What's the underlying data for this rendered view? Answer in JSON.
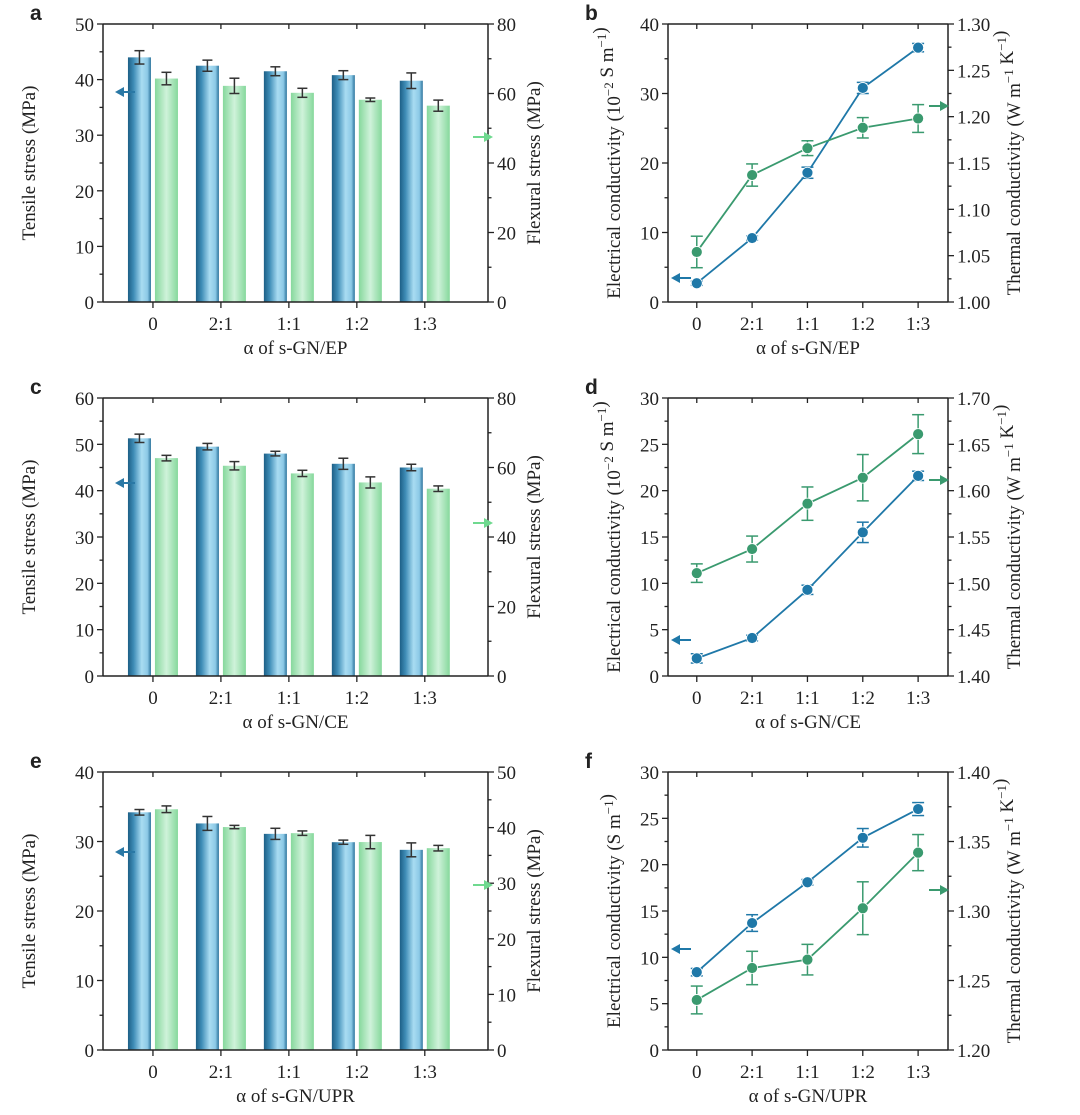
{
  "colors": {
    "blue_line": "#1f78a8",
    "green_line": "#3a9a6f",
    "blue_dark": "#1d5f86",
    "blue_light": "#a9dcf2",
    "green_dark": "#86d89c",
    "green_light": "#cff2da",
    "axis": "#222222",
    "err": "#333333"
  },
  "chart_data": [
    {
      "panel": "a",
      "type": "bar",
      "categories": [
        "0",
        "2:1",
        "1:1",
        "1:2",
        "1:3"
      ],
      "xlabel": "α of s-GN/EP",
      "y1label": [
        {
          "t": "Tensile stress (MPa)"
        }
      ],
      "y2label": [
        {
          "t": "Flexural stress (MPa)"
        }
      ],
      "y1lim": [
        0,
        50
      ],
      "y1ticks": [
        "0",
        "10",
        "20",
        "30",
        "40",
        "50"
      ],
      "y2lim": [
        0,
        80
      ],
      "y2ticks": [
        "0",
        "20",
        "40",
        "60",
        "80"
      ],
      "series": [
        {
          "name": "Tensile stress",
          "axis": "left",
          "values": [
            44.0,
            42.5,
            41.5,
            40.8,
            39.8
          ],
          "errors": [
            1.2,
            1.0,
            0.8,
            0.8,
            1.4
          ]
        },
        {
          "name": "Flexural stress",
          "axis": "right",
          "values": [
            64.3,
            62.2,
            60.2,
            58.2,
            56.5
          ],
          "errors": [
            1.8,
            2.2,
            1.3,
            0.5,
            1.6
          ]
        }
      ]
    },
    {
      "panel": "b",
      "type": "line",
      "categories": [
        "0",
        "2:1",
        "1:1",
        "1:2",
        "1:3"
      ],
      "xlabel": "α of s-GN/EP",
      "y1label": [
        {
          "t": "Electrical conductivity (10"
        },
        {
          "t": "−2",
          "sup": true
        },
        {
          "t": " S m"
        },
        {
          "t": "−1",
          "sup": true
        },
        {
          "t": ")"
        }
      ],
      "y2label": [
        {
          "t": "Thermal conductivity (W m"
        },
        {
          "t": "−1",
          "sup": true
        },
        {
          "t": " K"
        },
        {
          "t": "−1",
          "sup": true
        },
        {
          "t": ")"
        }
      ],
      "y1lim": [
        0,
        40
      ],
      "y1ticks": [
        "0",
        "10",
        "20",
        "30",
        "40"
      ],
      "y2lim": [
        1.0,
        1.3
      ],
      "y2ticks": [
        "1.00",
        "1.05",
        "1.10",
        "1.15",
        "1.20",
        "1.25",
        "1.30"
      ],
      "series": [
        {
          "name": "Electrical conductivity",
          "axis": "left",
          "values": [
            2.7,
            9.2,
            18.6,
            30.8,
            36.6
          ],
          "errors": [
            0.3,
            0.3,
            0.8,
            0.8,
            0.6
          ]
        },
        {
          "name": "Thermal conductivity",
          "axis": "right",
          "values": [
            1.054,
            1.137,
            1.166,
            1.188,
            1.198
          ],
          "errors": [
            0.017,
            0.012,
            0.008,
            0.011,
            0.015
          ]
        }
      ]
    },
    {
      "panel": "c",
      "type": "bar",
      "categories": [
        "0",
        "2:1",
        "1:1",
        "1:2",
        "1:3"
      ],
      "xlabel": "α of s-GN/CE",
      "y1label": [
        {
          "t": "Tensile stress (MPa)"
        }
      ],
      "y2label": [
        {
          "t": "Flexural stress (MPa)"
        }
      ],
      "y1lim": [
        0,
        60
      ],
      "y1ticks": [
        "0",
        "10",
        "20",
        "30",
        "40",
        "50",
        "60"
      ],
      "y2lim": [
        0,
        80
      ],
      "y2ticks": [
        "0",
        "20",
        "40",
        "60",
        "80"
      ],
      "series": [
        {
          "name": "Tensile stress",
          "axis": "left",
          "values": [
            51.3,
            49.5,
            48.0,
            45.8,
            45.0
          ],
          "errors": [
            0.9,
            0.7,
            0.5,
            1.2,
            0.7
          ]
        },
        {
          "name": "Flexural stress",
          "axis": "right",
          "values": [
            62.7,
            60.5,
            58.3,
            55.7,
            53.9
          ],
          "errors": [
            0.8,
            1.2,
            0.9,
            1.6,
            0.8
          ]
        }
      ]
    },
    {
      "panel": "d",
      "type": "line",
      "categories": [
        "0",
        "2:1",
        "1:1",
        "1:2",
        "1:3"
      ],
      "xlabel": "α of s-GN/CE",
      "y1label": [
        {
          "t": "Electrical conductivity (10"
        },
        {
          "t": "−2",
          "sup": true
        },
        {
          "t": " S m"
        },
        {
          "t": "−1",
          "sup": true
        },
        {
          "t": ")"
        }
      ],
      "y2label": [
        {
          "t": "Thermal conductivity (W m"
        },
        {
          "t": "−1",
          "sup": true
        },
        {
          "t": " K"
        },
        {
          "t": "−1",
          "sup": true
        },
        {
          "t": ")"
        }
      ],
      "y1lim": [
        0,
        30
      ],
      "y1ticks": [
        "0",
        "5",
        "10",
        "15",
        "20",
        "25",
        "30"
      ],
      "y2lim": [
        1.4,
        1.7
      ],
      "y2ticks": [
        "1.40",
        "1.45",
        "1.50",
        "1.55",
        "1.60",
        "1.65",
        "1.70"
      ],
      "series": [
        {
          "name": "Electrical conductivity",
          "axis": "left",
          "values": [
            1.9,
            4.1,
            9.3,
            15.5,
            21.6
          ],
          "errors": [
            0.5,
            0.3,
            0.5,
            1.1,
            0.5
          ]
        },
        {
          "name": "Thermal conductivity",
          "axis": "right",
          "values": [
            1.511,
            1.537,
            1.586,
            1.614,
            1.661
          ],
          "errors": [
            0.01,
            0.014,
            0.018,
            0.025,
            0.021
          ]
        }
      ]
    },
    {
      "panel": "e",
      "type": "bar",
      "categories": [
        "0",
        "2:1",
        "1:1",
        "1:2",
        "1:3"
      ],
      "xlabel": "α of s-GN/UPR",
      "y1label": [
        {
          "t": "Tensile stress (MPa)"
        }
      ],
      "y2label": [
        {
          "t": "Flexural stress (MPa)"
        }
      ],
      "y1lim": [
        0,
        40
      ],
      "y1ticks": [
        "0",
        "10",
        "20",
        "30",
        "40"
      ],
      "y2lim": [
        0,
        50
      ],
      "y2ticks": [
        "0",
        "10",
        "20",
        "30",
        "40",
        "50"
      ],
      "series": [
        {
          "name": "Tensile stress",
          "axis": "left",
          "values": [
            34.2,
            32.6,
            31.1,
            29.9,
            28.8
          ],
          "errors": [
            0.4,
            1.0,
            0.8,
            0.3,
            1.0
          ]
        },
        {
          "name": "Flexural stress",
          "axis": "right",
          "values": [
            43.3,
            40.1,
            39.0,
            37.4,
            36.3
          ],
          "errors": [
            0.6,
            0.3,
            0.4,
            1.2,
            0.5
          ]
        }
      ]
    },
    {
      "panel": "f",
      "type": "line",
      "categories": [
        "0",
        "2:1",
        "1:1",
        "1:2",
        "1:3"
      ],
      "xlabel": "α of s-GN/UPR",
      "y1label": [
        {
          "t": "Electrical conductivity (S m"
        },
        {
          "t": "−1",
          "sup": true
        },
        {
          "t": ")"
        }
      ],
      "y2label": [
        {
          "t": "Thermal conductivity (W m"
        },
        {
          "t": "−1",
          "sup": true
        },
        {
          "t": " K"
        },
        {
          "t": "−1",
          "sup": true
        },
        {
          "t": ")"
        }
      ],
      "y1lim": [
        0,
        30
      ],
      "y1ticks": [
        "0",
        "5",
        "10",
        "15",
        "20",
        "25",
        "30"
      ],
      "y2lim": [
        1.2,
        1.4
      ],
      "y2ticks": [
        "1.20",
        "1.25",
        "1.30",
        "1.35",
        "1.40"
      ],
      "series": [
        {
          "name": "Electrical conductivity",
          "axis": "left",
          "values": [
            8.4,
            13.7,
            18.1,
            22.9,
            26.0
          ],
          "errors": [
            0.4,
            0.9,
            0.3,
            1.0,
            0.7
          ]
        },
        {
          "name": "Thermal conductivity",
          "axis": "right",
          "values": [
            1.236,
            1.259,
            1.265,
            1.302,
            1.342
          ],
          "errors": [
            0.01,
            0.012,
            0.011,
            0.019,
            0.013
          ]
        }
      ]
    }
  ]
}
